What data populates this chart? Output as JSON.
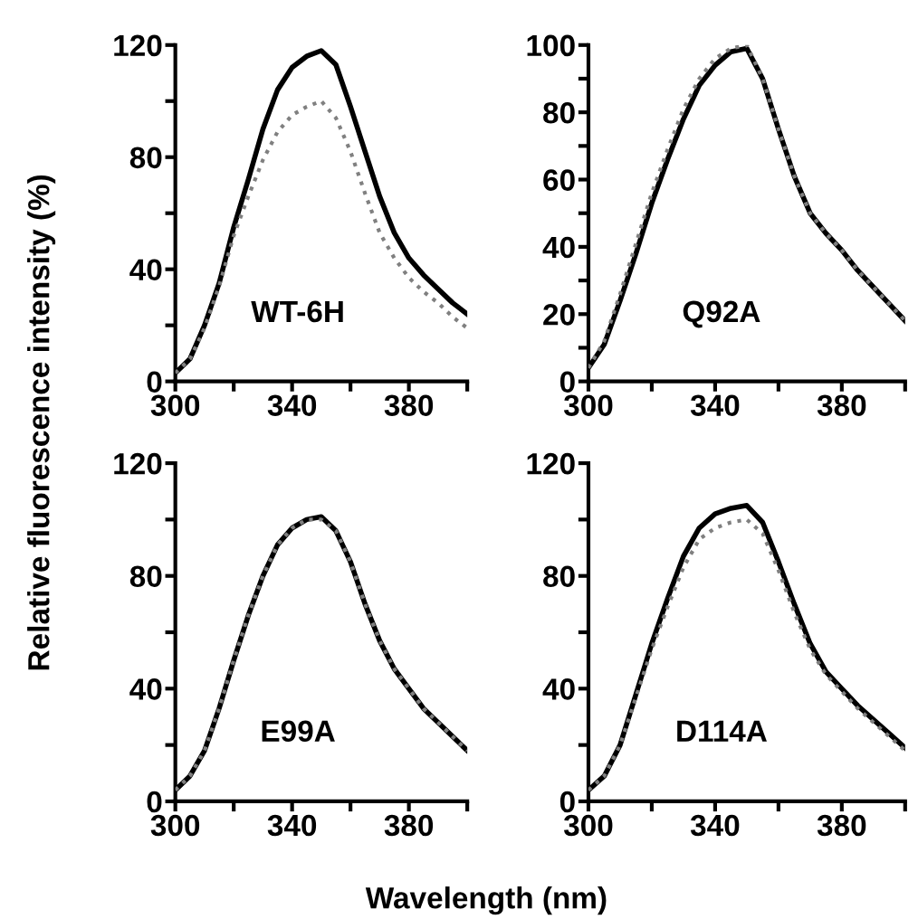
{
  "chart_data": [
    {
      "type": "line",
      "ylabel": "Relative fluorescence intensity (%)",
      "annotations": [
        "WT-6H"
      ],
      "x": [
        300,
        305,
        310,
        315,
        320,
        325,
        330,
        335,
        340,
        345,
        350,
        355,
        360,
        365,
        370,
        375,
        380,
        385,
        390,
        395,
        400
      ],
      "series": [
        {
          "color": "#000000",
          "line_style": "solid",
          "values": [
            3,
            8,
            20,
            35,
            55,
            72,
            90,
            104,
            112,
            116,
            118,
            113,
            98,
            82,
            66,
            53,
            44,
            38,
            33,
            28,
            24
          ]
        },
        {
          "color": "#808080",
          "line_style": "dotted",
          "values": [
            3,
            8,
            19,
            34,
            52,
            66,
            79,
            89,
            95,
            98,
            100,
            94,
            82,
            67,
            53,
            44,
            37,
            32,
            28,
            23,
            19
          ]
        }
      ],
      "xlim": [
        300,
        400
      ],
      "ylim": [
        0,
        120
      ],
      "xticks": [
        300,
        {
          "value": 320,
          "label": null
        },
        340,
        {
          "value": 360,
          "label": null
        },
        380,
        {
          "value": 400,
          "label": null
        }
      ],
      "yticks": [
        0,
        {
          "value": 20,
          "label": null
        },
        40,
        {
          "value": 60,
          "label": null
        },
        80,
        {
          "value": 100,
          "label": null
        },
        120
      ]
    },
    {
      "type": "line",
      "annotations": [
        "Q92A"
      ],
      "x": [
        300,
        305,
        310,
        315,
        320,
        325,
        330,
        335,
        340,
        345,
        350,
        355,
        360,
        365,
        370,
        375,
        380,
        385,
        390,
        395,
        400
      ],
      "series": [
        {
          "color": "#000000",
          "line_style": "solid",
          "values": [
            4,
            11,
            24,
            38,
            53,
            66,
            78,
            88,
            94,
            98,
            99,
            90,
            75,
            61,
            50,
            44,
            39,
            33,
            28,
            23,
            18
          ]
        },
        {
          "color": "#808080",
          "line_style": "dotted",
          "values": [
            4,
            12,
            26,
            41,
            56,
            69,
            81,
            90,
            96,
            99,
            100,
            90,
            75,
            61,
            50,
            44,
            39,
            33,
            28,
            23,
            18
          ]
        }
      ],
      "xlim": [
        300,
        400
      ],
      "ylim": [
        0,
        100
      ],
      "xticks": [
        300,
        {
          "value": 320,
          "label": null
        },
        340,
        {
          "value": 360,
          "label": null
        },
        380,
        {
          "value": 400,
          "label": null
        }
      ],
      "yticks": [
        0,
        {
          "value": 10,
          "label": null
        },
        20,
        {
          "value": 30,
          "label": null
        },
        40,
        {
          "value": 50,
          "label": null
        },
        60,
        {
          "value": 70,
          "label": null
        },
        80,
        {
          "value": 90,
          "label": null
        },
        100
      ]
    },
    {
      "type": "line",
      "xlabel": "Wavelength (nm)",
      "annotations": [
        "E99A"
      ],
      "x": [
        300,
        305,
        310,
        315,
        320,
        325,
        330,
        335,
        340,
        345,
        350,
        355,
        360,
        365,
        370,
        375,
        380,
        385,
        390,
        395,
        400
      ],
      "series": [
        {
          "color": "#000000",
          "line_style": "solid",
          "values": [
            4,
            9,
            18,
            33,
            50,
            66,
            80,
            91,
            97,
            100,
            101,
            96,
            85,
            70,
            57,
            47,
            40,
            33,
            28,
            23,
            18
          ]
        },
        {
          "color": "#808080",
          "line_style": "dotted",
          "values": [
            4,
            9,
            18,
            33,
            50,
            66,
            80,
            91,
            97,
            100,
            100,
            96,
            85,
            70,
            57,
            47,
            40,
            33,
            28,
            23,
            18
          ]
        }
      ],
      "xlim": [
        300,
        400
      ],
      "ylim": [
        0,
        120
      ],
      "xticks": [
        300,
        {
          "value": 320,
          "label": null
        },
        340,
        {
          "value": 360,
          "label": null
        },
        380,
        {
          "value": 400,
          "label": null
        }
      ],
      "yticks": [
        0,
        {
          "value": 20,
          "label": null
        },
        40,
        {
          "value": 60,
          "label": null
        },
        80,
        {
          "value": 100,
          "label": null
        },
        120
      ]
    },
    {
      "type": "line",
      "annotations": [
        "D114A"
      ],
      "x": [
        300,
        305,
        310,
        315,
        320,
        325,
        330,
        335,
        340,
        345,
        350,
        355,
        360,
        365,
        370,
        375,
        380,
        385,
        390,
        395,
        400
      ],
      "series": [
        {
          "color": "#000000",
          "line_style": "solid",
          "values": [
            4,
            9,
            20,
            38,
            56,
            72,
            87,
            97,
            102,
            104,
            105,
            99,
            85,
            70,
            56,
            46,
            40,
            34,
            29,
            24,
            19
          ]
        },
        {
          "color": "#808080",
          "line_style": "dotted",
          "values": [
            4,
            9,
            20,
            37,
            54,
            69,
            83,
            93,
            97,
            99,
            100,
            95,
            82,
            67,
            54,
            45,
            39,
            33,
            28,
            23,
            18
          ]
        }
      ],
      "xlim": [
        300,
        400
      ],
      "ylim": [
        0,
        120
      ],
      "xticks": [
        300,
        {
          "value": 320,
          "label": null
        },
        340,
        {
          "value": 360,
          "label": null
        },
        380,
        {
          "value": 400,
          "label": null
        }
      ],
      "yticks": [
        0,
        {
          "value": 20,
          "label": null
        },
        40,
        {
          "value": 60,
          "label": null
        },
        80,
        {
          "value": 100,
          "label": null
        },
        120
      ]
    }
  ]
}
